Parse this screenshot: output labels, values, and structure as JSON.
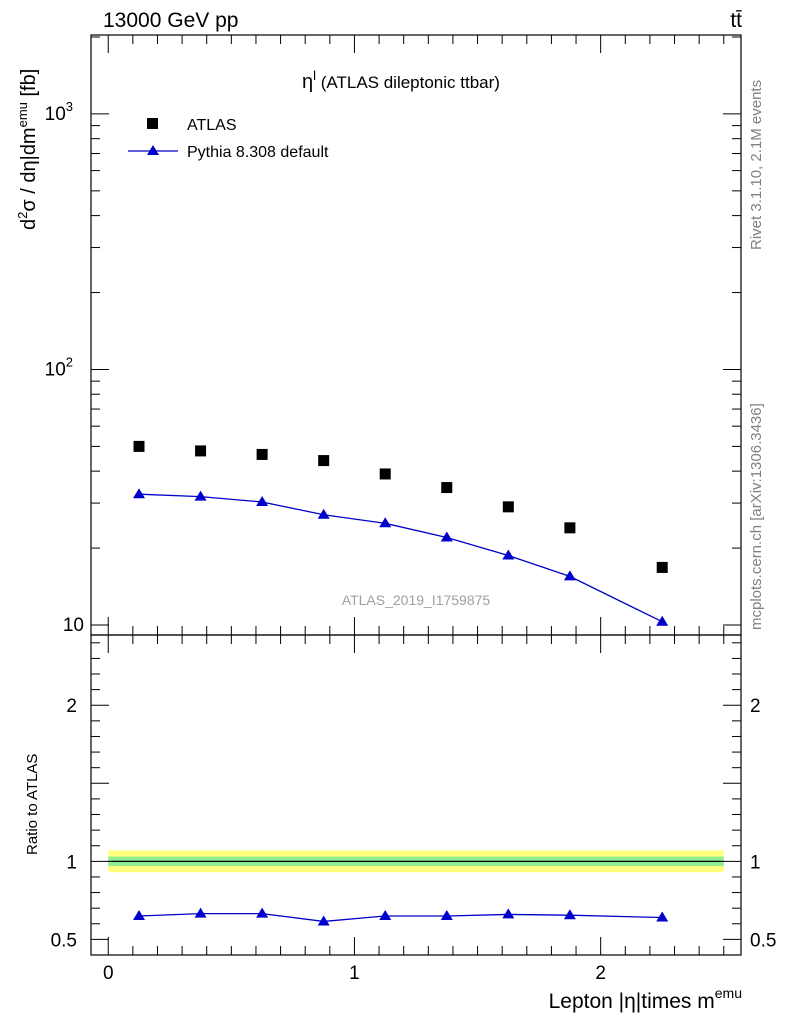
{
  "header": {
    "left": "13000 GeV pp",
    "right": "tt̄"
  },
  "side_texts": {
    "rivet": "Rivet 3.1.10,  2.1M events",
    "mcplots": "mcplots.cern.ch [arXiv:1306.3436]"
  },
  "chart_data": [
    {
      "type": "scatter",
      "title": "η^l (ATLAS dileptonic ttbar)",
      "watermark": "ATLAS_2019_I1759875",
      "ylabel": "d²σ / dη|dm^emu [fb]",
      "yscale": "log",
      "ylim": [
        10,
        2000
      ],
      "xlim": [
        -0.07,
        2.57
      ],
      "yticks": [
        {
          "value": 10,
          "label": "10"
        },
        {
          "value": 100,
          "label": "10^2"
        },
        {
          "value": 1000,
          "label": "10^3"
        }
      ],
      "legend_position": "top-left",
      "x": [
        0.125,
        0.375,
        0.625,
        0.875,
        1.125,
        1.375,
        1.625,
        1.875,
        2.25
      ],
      "series": [
        {
          "name": "ATLAS",
          "marker": "square",
          "color": "#000000",
          "values": [
            50,
            48,
            46.5,
            44,
            39,
            34.5,
            29,
            24,
            16.8
          ]
        },
        {
          "name": "Pythia 8.308 default",
          "marker": "triangle",
          "color": "#0000cc",
          "values": [
            32.5,
            31.8,
            30.3,
            27,
            25,
            22,
            18.7,
            15.5,
            10.3
          ]
        }
      ]
    },
    {
      "type": "line",
      "ylabel": "Ratio to ATLAS",
      "xlabel": "Lepton |η|times m^emu",
      "ylim": [
        0.4,
        2.45
      ],
      "xlim": [
        -0.07,
        2.57
      ],
      "yticks": [
        {
          "value": 0.5,
          "label": "0.5"
        },
        {
          "value": 1,
          "label": "1"
        },
        {
          "value": 2,
          "label": "2"
        }
      ],
      "xticks": [
        {
          "value": 0,
          "label": "0"
        },
        {
          "value": 1,
          "label": "1"
        },
        {
          "value": 2,
          "label": "2"
        }
      ],
      "reference_band": {
        "outer": [
          0.93,
          1.07
        ],
        "inner": [
          0.97,
          1.03
        ],
        "outer_color": "#ffff80",
        "inner_color": "#90ee90"
      },
      "x": [
        0.125,
        0.375,
        0.625,
        0.875,
        1.125,
        1.375,
        1.625,
        1.875,
        2.25
      ],
      "series": [
        {
          "name": "Pythia 8.308 default",
          "color": "#0000cc",
          "values": [
            0.65,
            0.665,
            0.665,
            0.615,
            0.65,
            0.65,
            0.66,
            0.655,
            0.64
          ]
        }
      ]
    }
  ]
}
